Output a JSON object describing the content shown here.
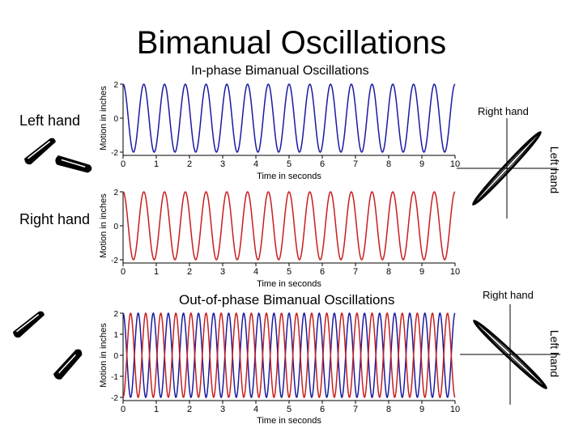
{
  "page": {
    "title": "Bimanual Oscillations",
    "left_hand_label": "Left hand",
    "right_hand_label": "Right hand"
  },
  "inphase": {
    "title": "In-phase Bimanual Oscillations",
    "phase_plot": {
      "top_label": "Right hand",
      "side_label": "Left hand"
    }
  },
  "outphase": {
    "title": "Out-of-phase Bimanual Oscillations",
    "phase_plot": {
      "top_label": "Right hand",
      "side_label": "Left hand"
    }
  },
  "colors": {
    "blue": "#1a1aa0",
    "red": "#c81e1e"
  },
  "icons": [
    "hand-pinch-icon"
  ],
  "chart_data": [
    {
      "type": "line",
      "title": "In-phase Bimanual Oscillations",
      "xlabel": "Time in seconds",
      "ylabel": "Motion in inches",
      "xlim": [
        0,
        10
      ],
      "ylim": [
        -2,
        2
      ],
      "xticks": [
        0,
        1,
        2,
        3,
        4,
        5,
        6,
        7,
        8,
        9,
        10
      ],
      "yticks": [
        2,
        0,
        -2
      ],
      "series": [
        {
          "color": "#1a1aa0",
          "amplitude": 2,
          "frequency_hz": 1.6,
          "phase_deg": 0
        }
      ]
    },
    {
      "type": "line",
      "title": "",
      "xlabel": "Time in seconds",
      "ylabel": "Motion in inches",
      "xlim": [
        0,
        10
      ],
      "ylim": [
        -2,
        2
      ],
      "xticks": [
        0,
        1,
        2,
        3,
        4,
        5,
        6,
        7,
        8,
        9,
        10
      ],
      "yticks": [
        2,
        0,
        -2
      ],
      "series": [
        {
          "color": "#c81e1e",
          "amplitude": 2,
          "frequency_hz": 1.6,
          "phase_deg": 0
        }
      ]
    },
    {
      "type": "line",
      "title": "Out-of-phase Bimanual Oscillations",
      "xlabel": "Time in seconds",
      "ylabel": "Motion in inches",
      "xlim": [
        0,
        10
      ],
      "ylim": [
        -2,
        2
      ],
      "xticks": [
        0,
        1,
        2,
        3,
        4,
        5,
        6,
        7,
        8,
        9,
        10
      ],
      "yticks": [
        2,
        1,
        0,
        -1,
        -2
      ],
      "series": [
        {
          "color": "#1a1aa0",
          "amplitude": 2,
          "frequency_hz": 2.2,
          "phase_deg": 0
        },
        {
          "color": "#c81e1e",
          "amplitude": 2,
          "frequency_hz": 2.2,
          "phase_deg": 180
        }
      ]
    },
    {
      "type": "line",
      "title": "",
      "xlabel": "",
      "ylabel": "",
      "kind": "phase-plot",
      "relation": "in-phase",
      "series": [
        {
          "color": "#000000"
        }
      ]
    },
    {
      "type": "line",
      "title": "",
      "xlabel": "",
      "ylabel": "",
      "kind": "phase-plot",
      "relation": "anti-phase",
      "series": [
        {
          "color": "#000000"
        }
      ]
    }
  ]
}
